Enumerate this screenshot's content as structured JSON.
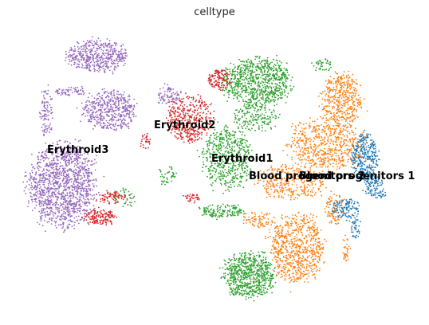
{
  "chart_data": {
    "type": "scatter",
    "title": "celltype",
    "xlabel": "",
    "ylabel": "",
    "grid": false,
    "legend": "on data",
    "series": [
      {
        "name": "Blood progenitors 1",
        "color": "#1f77b4",
        "regions": [
          {
            "cx": 458,
            "cy": 198,
            "rx": 16,
            "ry": 30,
            "n": 320
          },
          {
            "cx": 468,
            "cy": 232,
            "rx": 12,
            "ry": 14,
            "n": 90
          },
          {
            "cx": 432,
            "cy": 262,
            "rx": 18,
            "ry": 14,
            "n": 120
          },
          {
            "cx": 446,
            "cy": 288,
            "rx": 6,
            "ry": 14,
            "n": 40
          },
          {
            "cx": 476,
            "cy": 244,
            "rx": 8,
            "ry": 5,
            "n": 25
          }
        ]
      },
      {
        "name": "Blood progenitors 2",
        "color": "#ff7f0e",
        "regions": [
          {
            "cx": 428,
            "cy": 125,
            "rx": 24,
            "ry": 32,
            "n": 420
          },
          {
            "cx": 410,
            "cy": 180,
            "rx": 46,
            "ry": 32,
            "n": 620
          },
          {
            "cx": 365,
            "cy": 228,
            "rx": 42,
            "ry": 22,
            "n": 330
          },
          {
            "cx": 372,
            "cy": 312,
            "rx": 34,
            "ry": 42,
            "n": 700
          },
          {
            "cx": 420,
            "cy": 262,
            "rx": 12,
            "ry": 20,
            "n": 90
          },
          {
            "cx": 434,
            "cy": 312,
            "rx": 5,
            "ry": 16,
            "n": 35
          },
          {
            "cx": 325,
            "cy": 275,
            "rx": 20,
            "ry": 10,
            "n": 80
          }
        ]
      },
      {
        "name": "Erythroid1",
        "color": "#2ca02c",
        "regions": [
          {
            "cx": 322,
            "cy": 103,
            "rx": 42,
            "ry": 30,
            "n": 800
          },
          {
            "cx": 285,
            "cy": 198,
            "rx": 30,
            "ry": 38,
            "n": 520
          },
          {
            "cx": 312,
            "cy": 345,
            "rx": 32,
            "ry": 28,
            "n": 680
          },
          {
            "cx": 278,
            "cy": 265,
            "rx": 28,
            "ry": 8,
            "n": 140
          },
          {
            "cx": 320,
            "cy": 148,
            "rx": 30,
            "ry": 16,
            "n": 160
          },
          {
            "cx": 405,
            "cy": 82,
            "rx": 12,
            "ry": 8,
            "n": 40
          },
          {
            "cx": 208,
            "cy": 220,
            "rx": 12,
            "ry": 12,
            "n": 40
          },
          {
            "cx": 155,
            "cy": 248,
            "rx": 14,
            "ry": 12,
            "n": 50
          }
        ]
      },
      {
        "name": "Erythroid2",
        "color": "#d62728",
        "regions": [
          {
            "cx": 238,
            "cy": 148,
            "rx": 28,
            "ry": 30,
            "n": 420
          },
          {
            "cx": 276,
            "cy": 100,
            "rx": 14,
            "ry": 12,
            "n": 120
          },
          {
            "cx": 125,
            "cy": 272,
            "rx": 20,
            "ry": 10,
            "n": 150
          },
          {
            "cx": 140,
            "cy": 248,
            "rx": 18,
            "ry": 8,
            "n": 70
          },
          {
            "cx": 240,
            "cy": 248,
            "rx": 10,
            "ry": 6,
            "n": 35
          },
          {
            "cx": 182,
            "cy": 178,
            "rx": 6,
            "ry": 12,
            "n": 30
          }
        ]
      },
      {
        "name": "Erythroid3",
        "color": "#9467bd",
        "regions": [
          {
            "cx": 78,
            "cy": 232,
            "rx": 42,
            "ry": 52,
            "n": 1300
          },
          {
            "cx": 122,
            "cy": 70,
            "rx": 36,
            "ry": 20,
            "n": 470
          },
          {
            "cx": 138,
            "cy": 138,
            "rx": 34,
            "ry": 24,
            "n": 470
          },
          {
            "cx": 58,
            "cy": 142,
            "rx": 8,
            "ry": 32,
            "n": 100
          },
          {
            "cx": 90,
            "cy": 115,
            "rx": 22,
            "ry": 6,
            "n": 60
          },
          {
            "cx": 210,
            "cy": 120,
            "rx": 14,
            "ry": 12,
            "n": 80
          }
        ]
      }
    ],
    "annotations": [
      {
        "text": "Erythroid3",
        "x": 59,
        "y": 192
      },
      {
        "text": "Erythroid2",
        "x": 193,
        "y": 161
      },
      {
        "text": "Erythroid1",
        "x": 265,
        "y": 203
      },
      {
        "text": "Blood progenitors 2",
        "x": 312,
        "y": 225
      },
      {
        "text": "Blood progenitors 1",
        "x": 375,
        "y": 225
      }
    ]
  }
}
